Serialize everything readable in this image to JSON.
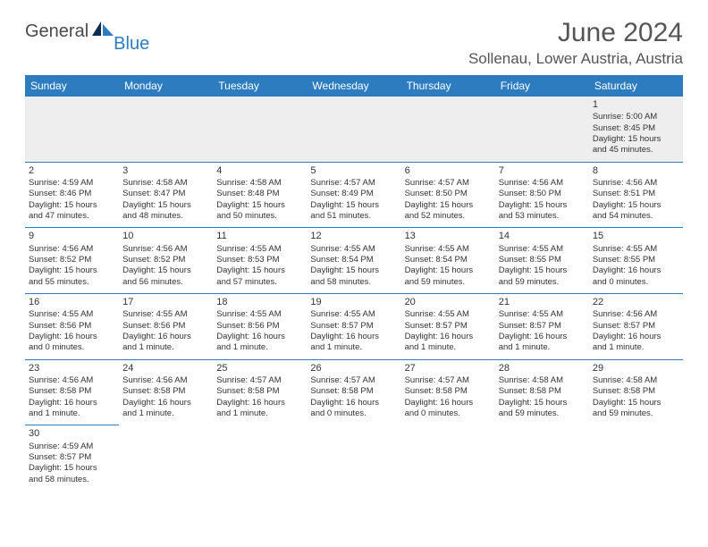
{
  "brand": {
    "part1": "General",
    "part2": "Blue"
  },
  "title": "June 2024",
  "location": "Sollenau, Lower Austria, Austria",
  "colors": {
    "header_bg": "#2d7cc0",
    "header_text": "#ffffff",
    "first_row_bg": "#eeeeee",
    "cell_border": "#2d7cc0",
    "text": "#333333",
    "brand_gray": "#4a4a4a",
    "brand_blue": "#2d7cc0"
  },
  "weekdays": [
    "Sunday",
    "Monday",
    "Tuesday",
    "Wednesday",
    "Thursday",
    "Friday",
    "Saturday"
  ],
  "weeks": [
    [
      null,
      null,
      null,
      null,
      null,
      null,
      {
        "n": "1",
        "sunrise": "Sunrise: 5:00 AM",
        "sunset": "Sunset: 8:45 PM",
        "day1": "Daylight: 15 hours",
        "day2": "and 45 minutes."
      }
    ],
    [
      {
        "n": "2",
        "sunrise": "Sunrise: 4:59 AM",
        "sunset": "Sunset: 8:46 PM",
        "day1": "Daylight: 15 hours",
        "day2": "and 47 minutes."
      },
      {
        "n": "3",
        "sunrise": "Sunrise: 4:58 AM",
        "sunset": "Sunset: 8:47 PM",
        "day1": "Daylight: 15 hours",
        "day2": "and 48 minutes."
      },
      {
        "n": "4",
        "sunrise": "Sunrise: 4:58 AM",
        "sunset": "Sunset: 8:48 PM",
        "day1": "Daylight: 15 hours",
        "day2": "and 50 minutes."
      },
      {
        "n": "5",
        "sunrise": "Sunrise: 4:57 AM",
        "sunset": "Sunset: 8:49 PM",
        "day1": "Daylight: 15 hours",
        "day2": "and 51 minutes."
      },
      {
        "n": "6",
        "sunrise": "Sunrise: 4:57 AM",
        "sunset": "Sunset: 8:50 PM",
        "day1": "Daylight: 15 hours",
        "day2": "and 52 minutes."
      },
      {
        "n": "7",
        "sunrise": "Sunrise: 4:56 AM",
        "sunset": "Sunset: 8:50 PM",
        "day1": "Daylight: 15 hours",
        "day2": "and 53 minutes."
      },
      {
        "n": "8",
        "sunrise": "Sunrise: 4:56 AM",
        "sunset": "Sunset: 8:51 PM",
        "day1": "Daylight: 15 hours",
        "day2": "and 54 minutes."
      }
    ],
    [
      {
        "n": "9",
        "sunrise": "Sunrise: 4:56 AM",
        "sunset": "Sunset: 8:52 PM",
        "day1": "Daylight: 15 hours",
        "day2": "and 55 minutes."
      },
      {
        "n": "10",
        "sunrise": "Sunrise: 4:56 AM",
        "sunset": "Sunset: 8:52 PM",
        "day1": "Daylight: 15 hours",
        "day2": "and 56 minutes."
      },
      {
        "n": "11",
        "sunrise": "Sunrise: 4:55 AM",
        "sunset": "Sunset: 8:53 PM",
        "day1": "Daylight: 15 hours",
        "day2": "and 57 minutes."
      },
      {
        "n": "12",
        "sunrise": "Sunrise: 4:55 AM",
        "sunset": "Sunset: 8:54 PM",
        "day1": "Daylight: 15 hours",
        "day2": "and 58 minutes."
      },
      {
        "n": "13",
        "sunrise": "Sunrise: 4:55 AM",
        "sunset": "Sunset: 8:54 PM",
        "day1": "Daylight: 15 hours",
        "day2": "and 59 minutes."
      },
      {
        "n": "14",
        "sunrise": "Sunrise: 4:55 AM",
        "sunset": "Sunset: 8:55 PM",
        "day1": "Daylight: 15 hours",
        "day2": "and 59 minutes."
      },
      {
        "n": "15",
        "sunrise": "Sunrise: 4:55 AM",
        "sunset": "Sunset: 8:55 PM",
        "day1": "Daylight: 16 hours",
        "day2": "and 0 minutes."
      }
    ],
    [
      {
        "n": "16",
        "sunrise": "Sunrise: 4:55 AM",
        "sunset": "Sunset: 8:56 PM",
        "day1": "Daylight: 16 hours",
        "day2": "and 0 minutes."
      },
      {
        "n": "17",
        "sunrise": "Sunrise: 4:55 AM",
        "sunset": "Sunset: 8:56 PM",
        "day1": "Daylight: 16 hours",
        "day2": "and 1 minute."
      },
      {
        "n": "18",
        "sunrise": "Sunrise: 4:55 AM",
        "sunset": "Sunset: 8:56 PM",
        "day1": "Daylight: 16 hours",
        "day2": "and 1 minute."
      },
      {
        "n": "19",
        "sunrise": "Sunrise: 4:55 AM",
        "sunset": "Sunset: 8:57 PM",
        "day1": "Daylight: 16 hours",
        "day2": "and 1 minute."
      },
      {
        "n": "20",
        "sunrise": "Sunrise: 4:55 AM",
        "sunset": "Sunset: 8:57 PM",
        "day1": "Daylight: 16 hours",
        "day2": "and 1 minute."
      },
      {
        "n": "21",
        "sunrise": "Sunrise: 4:55 AM",
        "sunset": "Sunset: 8:57 PM",
        "day1": "Daylight: 16 hours",
        "day2": "and 1 minute."
      },
      {
        "n": "22",
        "sunrise": "Sunrise: 4:56 AM",
        "sunset": "Sunset: 8:57 PM",
        "day1": "Daylight: 16 hours",
        "day2": "and 1 minute."
      }
    ],
    [
      {
        "n": "23",
        "sunrise": "Sunrise: 4:56 AM",
        "sunset": "Sunset: 8:58 PM",
        "day1": "Daylight: 16 hours",
        "day2": "and 1 minute."
      },
      {
        "n": "24",
        "sunrise": "Sunrise: 4:56 AM",
        "sunset": "Sunset: 8:58 PM",
        "day1": "Daylight: 16 hours",
        "day2": "and 1 minute."
      },
      {
        "n": "25",
        "sunrise": "Sunrise: 4:57 AM",
        "sunset": "Sunset: 8:58 PM",
        "day1": "Daylight: 16 hours",
        "day2": "and 1 minute."
      },
      {
        "n": "26",
        "sunrise": "Sunrise: 4:57 AM",
        "sunset": "Sunset: 8:58 PM",
        "day1": "Daylight: 16 hours",
        "day2": "and 0 minutes."
      },
      {
        "n": "27",
        "sunrise": "Sunrise: 4:57 AM",
        "sunset": "Sunset: 8:58 PM",
        "day1": "Daylight: 16 hours",
        "day2": "and 0 minutes."
      },
      {
        "n": "28",
        "sunrise": "Sunrise: 4:58 AM",
        "sunset": "Sunset: 8:58 PM",
        "day1": "Daylight: 15 hours",
        "day2": "and 59 minutes."
      },
      {
        "n": "29",
        "sunrise": "Sunrise: 4:58 AM",
        "sunset": "Sunset: 8:58 PM",
        "day1": "Daylight: 15 hours",
        "day2": "and 59 minutes."
      }
    ],
    [
      {
        "n": "30",
        "sunrise": "Sunrise: 4:59 AM",
        "sunset": "Sunset: 8:57 PM",
        "day1": "Daylight: 15 hours",
        "day2": "and 58 minutes."
      },
      null,
      null,
      null,
      null,
      null,
      null
    ]
  ]
}
